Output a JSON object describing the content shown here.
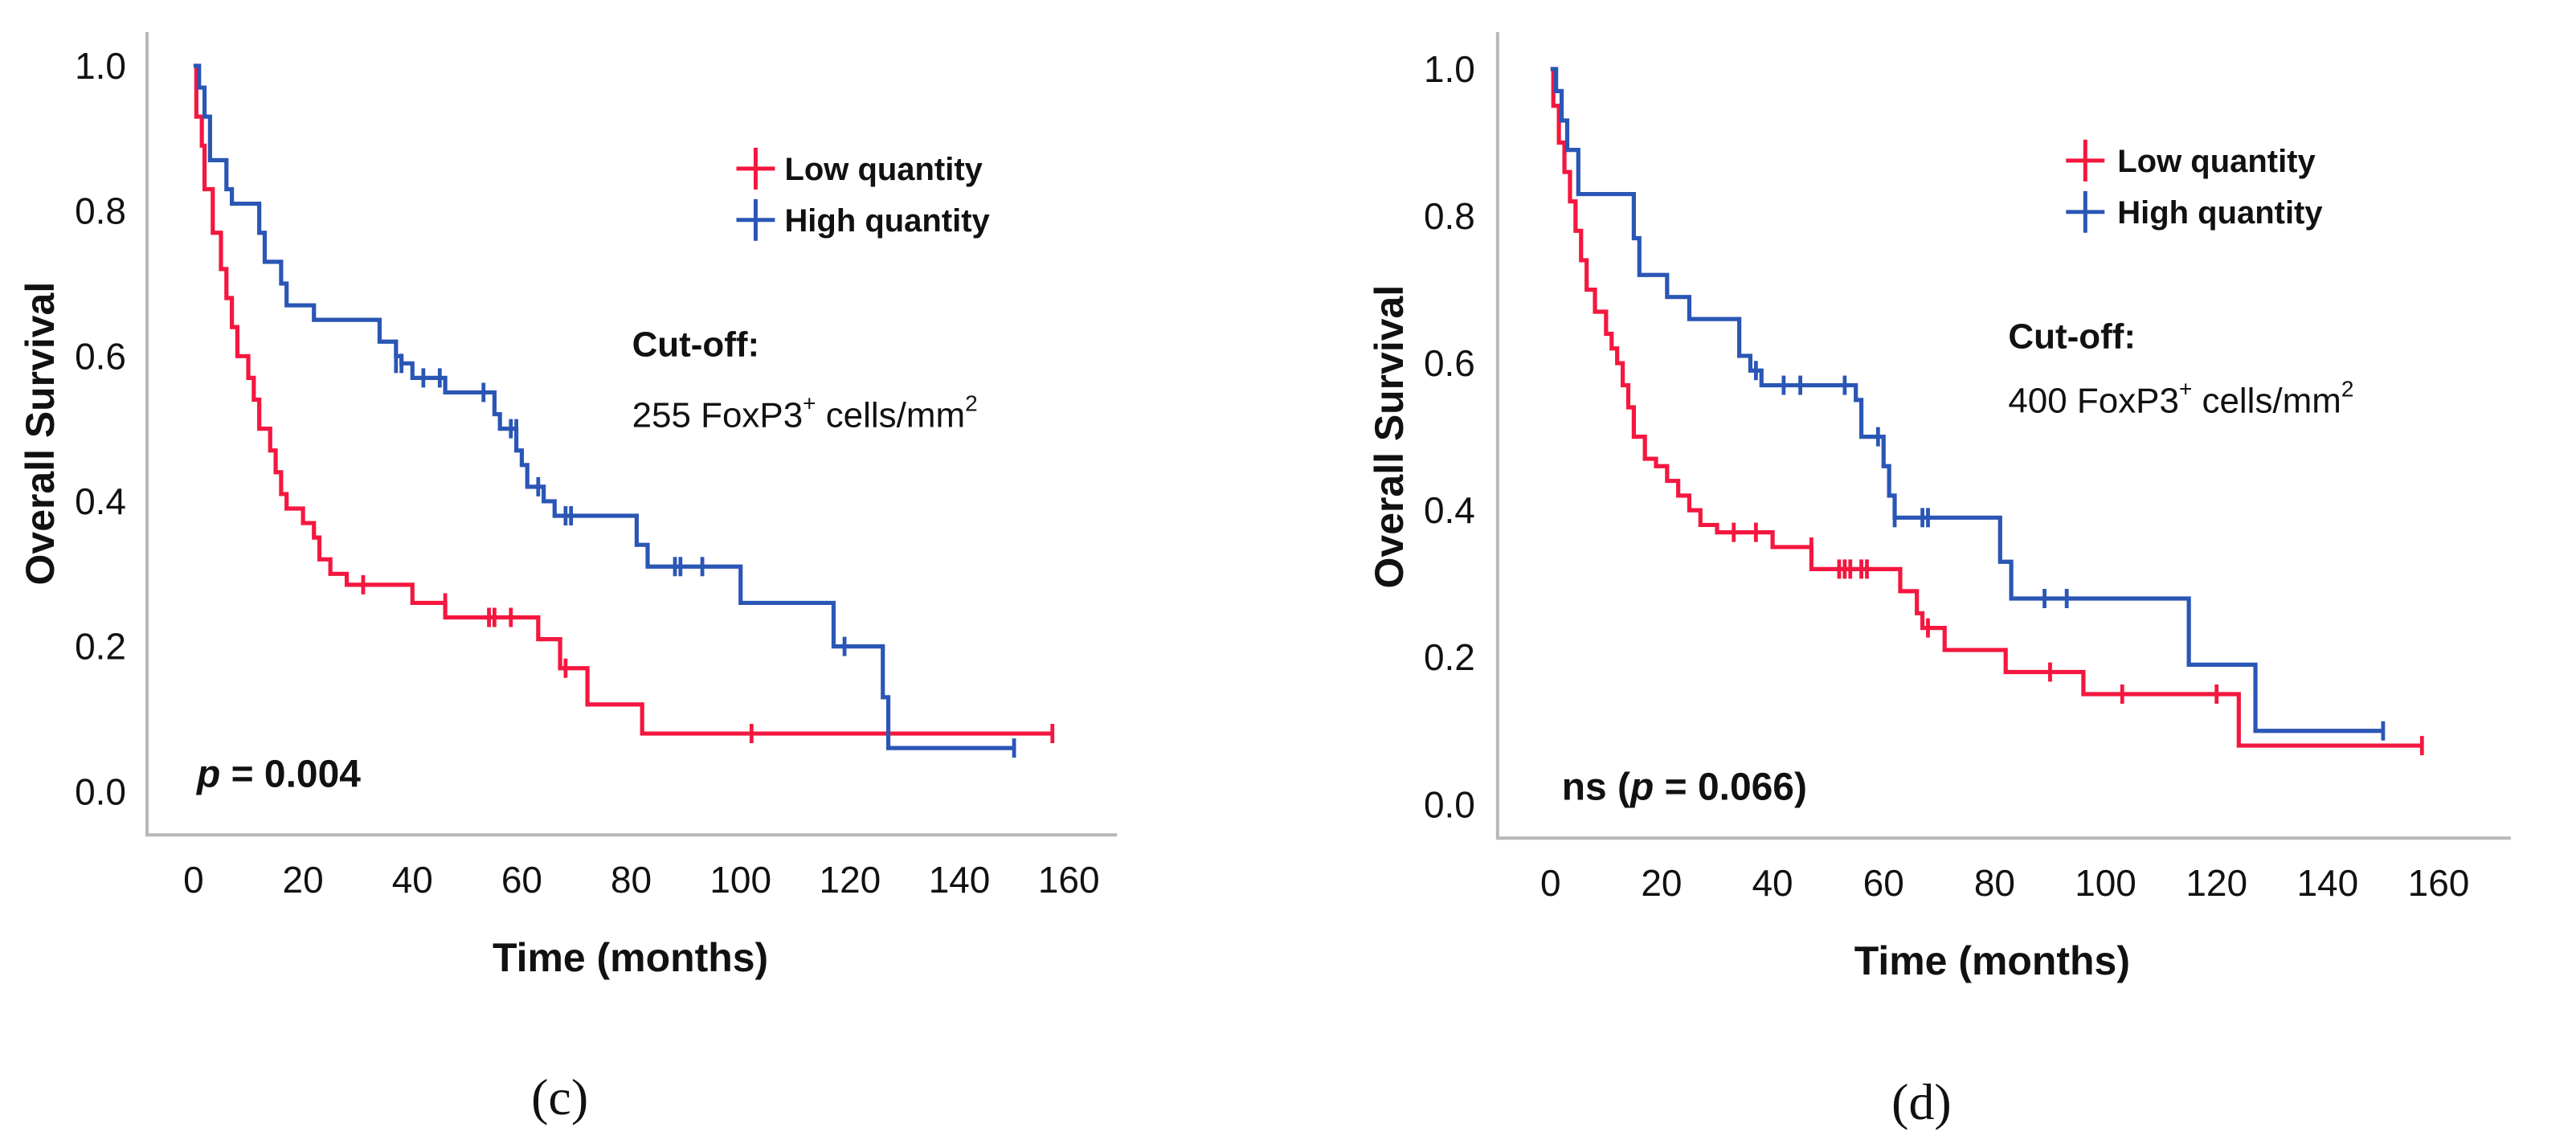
{
  "colors": {
    "low": "#f4173f",
    "high": "#2a56b5"
  },
  "chart_data": [
    {
      "type": "line",
      "subtype": "kaplan-meier",
      "panel_label": "(c)",
      "xlabel": "Time (months)",
      "ylabel": "Overall Survival",
      "xlim": [
        0,
        160
      ],
      "ylim": [
        0,
        1
      ],
      "xticks": [
        "0",
        "20",
        "40",
        "60",
        "80",
        "100",
        "120",
        "140",
        "160"
      ],
      "yticks": [
        "0.0",
        "0.2",
        "0.4",
        "0.6",
        "0.8",
        "1.0"
      ],
      "legend": [
        "Low quantity",
        "High quantity"
      ],
      "legend_position": "top-right",
      "cutoff_title": "Cut-off:",
      "cutoff_value": "255 FoxP3",
      "cutoff_sup": "+",
      "cutoff_unit": " cells/mm",
      "cutoff_unit_sup": "2",
      "p_prefix": "",
      "p_label": "p",
      "p_value": " = 0.004",
      "p_suffix": "",
      "series": [
        {
          "name": "Low quantity",
          "color_key": "low",
          "steps": [
            [
              0,
              1.0
            ],
            [
              0.5,
              0.93
            ],
            [
              1.5,
              0.89
            ],
            [
              2,
              0.83
            ],
            [
              3.5,
              0.77
            ],
            [
              5,
              0.72
            ],
            [
              6,
              0.68
            ],
            [
              7,
              0.64
            ],
            [
              8,
              0.6
            ],
            [
              10,
              0.57
            ],
            [
              11,
              0.54
            ],
            [
              12,
              0.5
            ],
            [
              14,
              0.47
            ],
            [
              15,
              0.44
            ],
            [
              16,
              0.41
            ],
            [
              17,
              0.39
            ],
            [
              20,
              0.37
            ],
            [
              22,
              0.35
            ],
            [
              23,
              0.32
            ],
            [
              25,
              0.3
            ],
            [
              28,
              0.285
            ],
            [
              40,
              0.26
            ],
            [
              46,
              0.24
            ],
            [
              63,
              0.21
            ],
            [
              67,
              0.17
            ],
            [
              72,
              0.12
            ],
            [
              82,
              0.08
            ]
          ],
          "end": 157,
          "censored": [
            [
              31,
              0.285
            ],
            [
              46,
              0.26
            ],
            [
              54,
              0.24
            ],
            [
              55,
              0.24
            ],
            [
              58,
              0.24
            ],
            [
              68,
              0.17
            ],
            [
              102,
              0.08
            ],
            [
              157,
              0.08
            ]
          ]
        },
        {
          "name": "High quantity",
          "color_key": "high",
          "steps": [
            [
              0,
              1.0
            ],
            [
              1,
              0.97
            ],
            [
              2,
              0.93
            ],
            [
              3,
              0.87
            ],
            [
              6,
              0.83
            ],
            [
              7,
              0.81
            ],
            [
              12,
              0.77
            ],
            [
              13,
              0.73
            ],
            [
              16,
              0.7
            ],
            [
              17,
              0.67
            ],
            [
              22,
              0.65
            ],
            [
              34,
              0.62
            ],
            [
              37,
              0.6
            ],
            [
              38,
              0.59
            ],
            [
              40,
              0.57
            ],
            [
              46,
              0.55
            ],
            [
              55,
              0.52
            ],
            [
              56,
              0.5
            ],
            [
              59,
              0.47
            ],
            [
              60,
              0.45
            ],
            [
              61,
              0.42
            ],
            [
              64,
              0.4
            ],
            [
              66,
              0.38
            ],
            [
              81,
              0.34
            ],
            [
              83,
              0.31
            ],
            [
              100,
              0.26
            ],
            [
              117,
              0.2
            ],
            [
              126,
              0.13
            ],
            [
              127,
              0.06
            ]
          ],
          "end": 150,
          "censored": [
            [
              37,
              0.59
            ],
            [
              38,
              0.59
            ],
            [
              42,
              0.57
            ],
            [
              45,
              0.57
            ],
            [
              53,
              0.55
            ],
            [
              58,
              0.5
            ],
            [
              59,
              0.5
            ],
            [
              63,
              0.42
            ],
            [
              68,
              0.38
            ],
            [
              69,
              0.38
            ],
            [
              88,
              0.31
            ],
            [
              89,
              0.31
            ],
            [
              93,
              0.31
            ],
            [
              119,
              0.2
            ],
            [
              150,
              0.06
            ]
          ]
        }
      ]
    },
    {
      "type": "line",
      "subtype": "kaplan-meier",
      "panel_label": "(d)",
      "xlabel": "Time (months)",
      "ylabel": "Overall Survival",
      "xlim": [
        0,
        160
      ],
      "ylim": [
        0,
        1
      ],
      "xticks": [
        "0",
        "20",
        "40",
        "60",
        "80",
        "100",
        "120",
        "140",
        "160"
      ],
      "yticks": [
        "0.0",
        "0.2",
        "0.4",
        "0.6",
        "0.8",
        "1.0"
      ],
      "legend": [
        "Low quantity",
        "High quantity"
      ],
      "legend_position": "top-right",
      "cutoff_title": "Cut-off:",
      "cutoff_value": "400 FoxP3",
      "cutoff_sup": "+",
      "cutoff_unit": " cells/mm",
      "cutoff_unit_sup": "2",
      "p_prefix": "ns (",
      "p_label": "p",
      "p_value": " = 0.066",
      "p_suffix": ")",
      "series": [
        {
          "name": "Low quantity",
          "color_key": "low",
          "steps": [
            [
              0,
              1.0
            ],
            [
              0.5,
              0.95
            ],
            [
              1.5,
              0.9
            ],
            [
              2.5,
              0.86
            ],
            [
              3.5,
              0.82
            ],
            [
              4.5,
              0.78
            ],
            [
              5.5,
              0.74
            ],
            [
              6.5,
              0.7
            ],
            [
              8,
              0.67
            ],
            [
              10,
              0.64
            ],
            [
              11,
              0.62
            ],
            [
              12,
              0.6
            ],
            [
              13,
              0.57
            ],
            [
              14,
              0.54
            ],
            [
              15,
              0.5
            ],
            [
              17,
              0.47
            ],
            [
              19,
              0.46
            ],
            [
              21,
              0.44
            ],
            [
              23,
              0.42
            ],
            [
              25,
              0.4
            ],
            [
              27,
              0.38
            ],
            [
              30,
              0.37
            ],
            [
              40,
              0.35
            ],
            [
              47,
              0.32
            ],
            [
              63,
              0.29
            ],
            [
              66,
              0.26
            ],
            [
              67,
              0.24
            ],
            [
              71,
              0.21
            ],
            [
              82,
              0.18
            ],
            [
              96,
              0.15
            ],
            [
              124,
              0.08
            ]
          ],
          "end": 157,
          "censored": [
            [
              33,
              0.37
            ],
            [
              37,
              0.37
            ],
            [
              47,
              0.35
            ],
            [
              52,
              0.32
            ],
            [
              53,
              0.32
            ],
            [
              54,
              0.32
            ],
            [
              56,
              0.32
            ],
            [
              57,
              0.32
            ],
            [
              68,
              0.24
            ],
            [
              90,
              0.18
            ],
            [
              103,
              0.15
            ],
            [
              120,
              0.15
            ],
            [
              157,
              0.08
            ]
          ]
        },
        {
          "name": "High quantity",
          "color_key": "high",
          "steps": [
            [
              0,
              1.0
            ],
            [
              1,
              0.97
            ],
            [
              2,
              0.93
            ],
            [
              3,
              0.89
            ],
            [
              5,
              0.83
            ],
            [
              15,
              0.77
            ],
            [
              16,
              0.72
            ],
            [
              21,
              0.69
            ],
            [
              25,
              0.66
            ],
            [
              34,
              0.61
            ],
            [
              36,
              0.59
            ],
            [
              38,
              0.57
            ],
            [
              55,
              0.55
            ],
            [
              56,
              0.5
            ],
            [
              60,
              0.46
            ],
            [
              61,
              0.42
            ],
            [
              62,
              0.39
            ],
            [
              81,
              0.33
            ],
            [
              83,
              0.28
            ],
            [
              115,
              0.19
            ],
            [
              127,
              0.1
            ]
          ],
          "end": 150,
          "censored": [
            [
              37,
              0.59
            ],
            [
              42,
              0.57
            ],
            [
              45,
              0.57
            ],
            [
              53,
              0.57
            ],
            [
              59,
              0.5
            ],
            [
              62,
              0.39
            ],
            [
              67,
              0.39
            ],
            [
              68,
              0.39
            ],
            [
              89,
              0.28
            ],
            [
              93,
              0.28
            ],
            [
              150,
              0.1
            ]
          ]
        }
      ]
    }
  ]
}
